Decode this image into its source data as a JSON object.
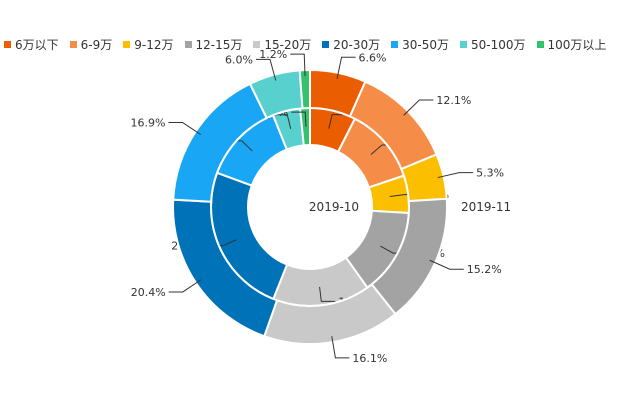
{
  "chart_data": {
    "type": "pie",
    "variant": "nested-donut",
    "legend_position": "top-left",
    "categories": [
      "6万以下",
      "6-9万",
      "9-12万",
      "12-15万",
      "15-20万",
      "20-30万",
      "30-50万",
      "50-100万",
      "100万以上"
    ],
    "colors": [
      "#ea5d00",
      "#f58d48",
      "#fcbf00",
      "#a3a3a3",
      "#c9c9c9",
      "#0073b8",
      "#19a7f5",
      "#57d0ce",
      "#34c26e"
    ],
    "series": [
      {
        "name": "2019-10",
        "ring": "inner",
        "values": [
          7.5,
          12.4,
          6.1,
          14.2,
          15.9,
          24.6,
          13.3,
          4.5,
          1.6
        ]
      },
      {
        "name": "2019-11",
        "ring": "outer",
        "values": [
          6.6,
          12.1,
          5.3,
          15.2,
          16.1,
          20.4,
          16.9,
          6.0,
          1.2
        ]
      }
    ],
    "units": "%"
  }
}
